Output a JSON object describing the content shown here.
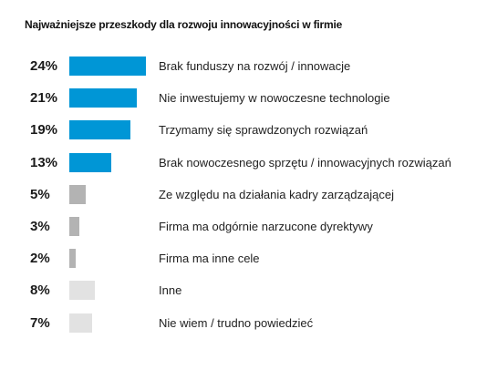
{
  "chart_data": {
    "type": "bar",
    "orientation": "horizontal",
    "title": "Najważniejsze przeszkody dla rozwoju innowacyjności w firmie",
    "categories": [
      "Brak funduszy na rozwój / innowacje",
      "Nie inwestujemy w nowoczesne technologie",
      "Trzymamy się sprawdzonych rozwiązań",
      "Brak nowoczesnego sprzętu / innowacyjnych rozwiązań",
      "Ze względu na działania kadry zarządzającej",
      "Firma ma odgórnie narzucone dyrektywy",
      "Firma ma inne cele",
      "Inne",
      "Nie wiem / trudno powiedzieć"
    ],
    "values": [
      24,
      21,
      19,
      13,
      5,
      3,
      2,
      8,
      7
    ],
    "value_labels": [
      "24%",
      "21%",
      "19%",
      "13%",
      "5%",
      "3%",
      "2%",
      "8%",
      "7%"
    ],
    "colors": [
      "#0096d6",
      "#0096d6",
      "#0096d6",
      "#0096d6",
      "#b3b3b3",
      "#b3b3b3",
      "#b3b3b3",
      "#e2e2e2",
      "#e2e2e2"
    ],
    "xlim": [
      0,
      24
    ],
    "grid": false,
    "legend": "none"
  }
}
